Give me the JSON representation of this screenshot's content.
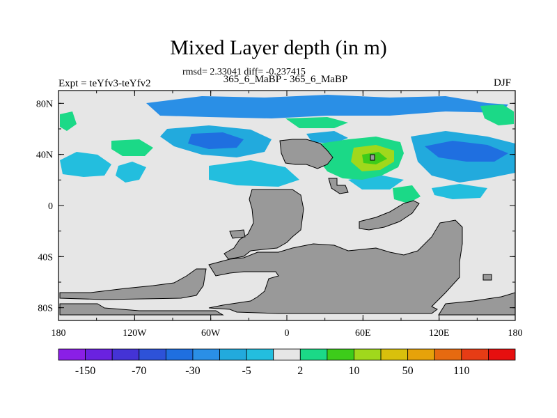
{
  "chart_data": {
    "type": "heatmap",
    "title": "Mixed Layer depth (in m)",
    "stats_line": "rmsd= 2.33041 diff= -0.237415",
    "subtitle": "365_6_MaBP - 365_6_MaBP",
    "left_label": "Expt = teYfv3-teYfv2",
    "right_label": "DJF",
    "x_ticks": [
      {
        "value": -180,
        "label": "180"
      },
      {
        "value": -120,
        "label": "120W"
      },
      {
        "value": -60,
        "label": "60W"
      },
      {
        "value": 0,
        "label": "0"
      },
      {
        "value": 60,
        "label": "60E"
      },
      {
        "value": 120,
        "label": "120E"
      },
      {
        "value": 180,
        "label": "180"
      }
    ],
    "y_ticks": [
      {
        "value": 80,
        "label": "80N"
      },
      {
        "value": 40,
        "label": "40N"
      },
      {
        "value": 0,
        "label": "0"
      },
      {
        "value": -40,
        "label": "40S"
      },
      {
        "value": -80,
        "label": "80S"
      }
    ],
    "xlim": [
      -180,
      180
    ],
    "ylim": [
      -90,
      90
    ],
    "levels": [
      "-150",
      "",
      "-70",
      "",
      "-30",
      "",
      "-5",
      "",
      "2",
      "",
      "10",
      "",
      "50",
      "",
      "110",
      ""
    ],
    "colors": [
      "#8a1fe6",
      "#6a22e0",
      "#4433d6",
      "#2d52d8",
      "#1f6fe0",
      "#2a8fe6",
      "#22aadd",
      "#23bede",
      "#e6e6e6",
      "#1bd987",
      "#3dcc1a",
      "#a0d81c",
      "#d9c00c",
      "#e6a20a",
      "#e66a10",
      "#e63c15",
      "#e60f0f"
    ],
    "background_color": "#e6e6e6",
    "land_color": "#999999",
    "colorbar_labels": [
      "-150",
      "-70",
      "-30",
      "-5",
      "2",
      "10",
      "50",
      "110"
    ]
  }
}
